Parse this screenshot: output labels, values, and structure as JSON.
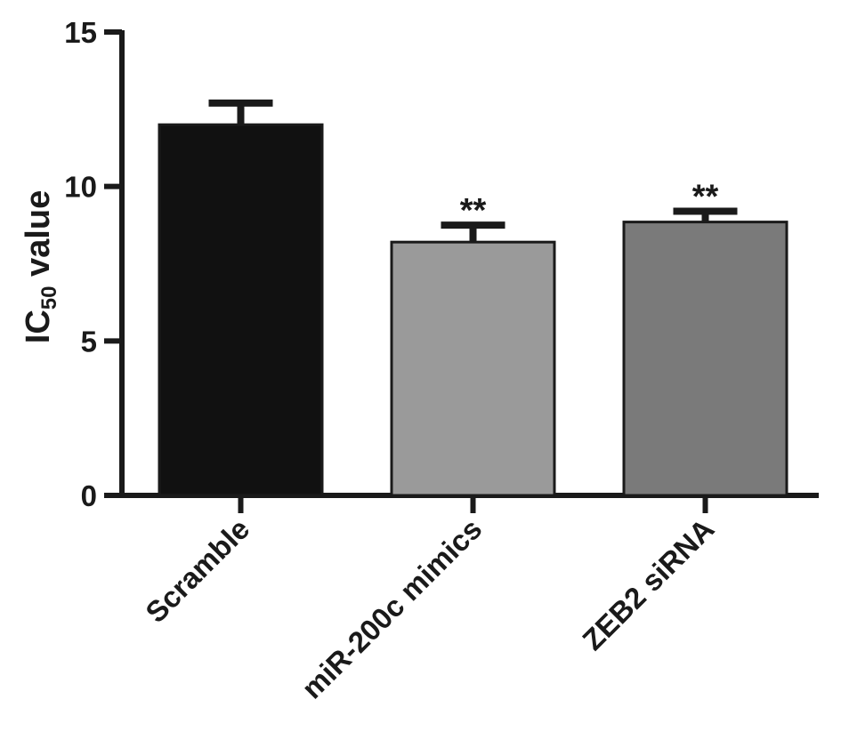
{
  "chart_data": {
    "type": "bar",
    "categories": [
      "Scramble",
      "miR-200c mimics",
      "ZEB2 siRNA"
    ],
    "values": [
      12.0,
      8.2,
      8.85
    ],
    "errors": [
      0.7,
      0.55,
      0.35
    ],
    "significance": [
      "",
      "**",
      "**"
    ],
    "colors": [
      "#111111",
      "#9a9a9a",
      "#7a7a7a"
    ],
    "ylabel_main": "IC",
    "ylabel_sub": "50",
    "ylabel_rest": " value",
    "ylim": [
      0,
      15
    ],
    "yticks": [
      "0",
      "5",
      "10",
      "15"
    ],
    "grid": false
  }
}
